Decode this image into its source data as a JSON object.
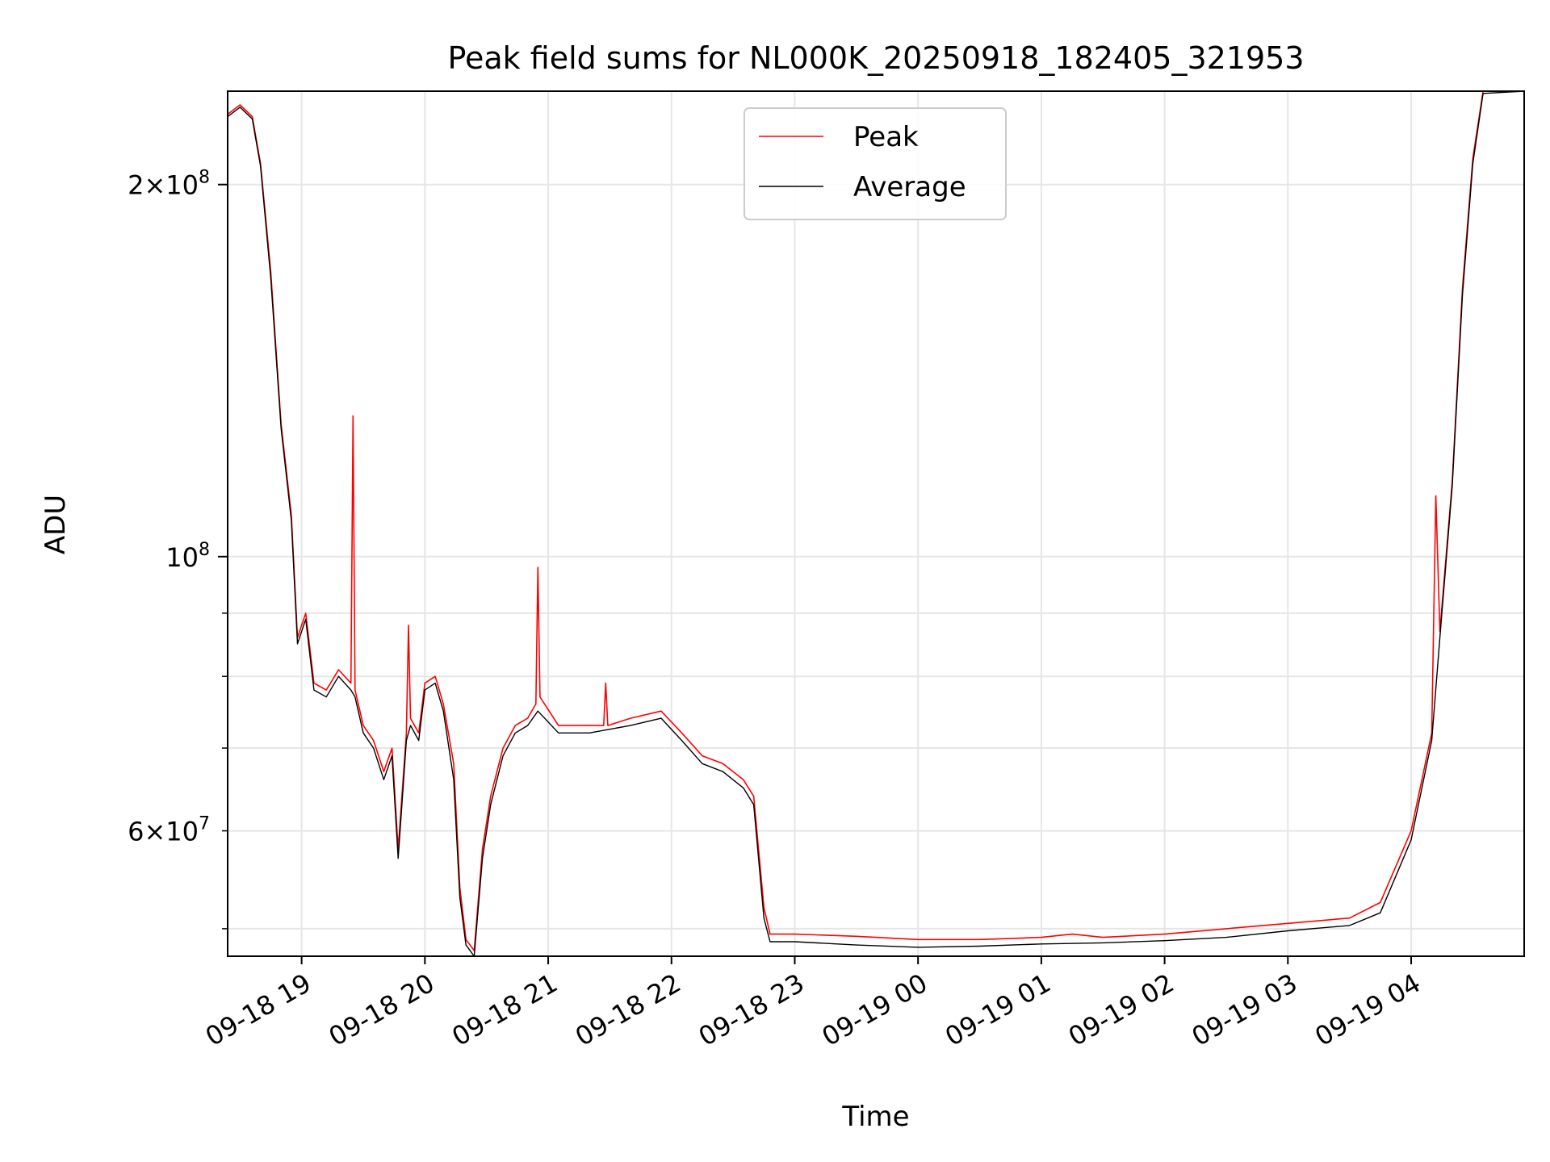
{
  "chart_data": {
    "type": "line",
    "title": "Peak field sums for NL000K_20250918_182405_321953",
    "xlabel": "Time",
    "ylabel": "ADU",
    "yscale": "log",
    "ylim": [
      47500000,
      238000000
    ],
    "xlim": [
      "2025-09-18T18:24",
      "2025-09-19T04:55"
    ],
    "grid": true,
    "legend_position": "top-center",
    "x_ticks": [
      "09-18 19",
      "09-18 20",
      "09-18 21",
      "09-18 22",
      "09-18 23",
      "09-19 00",
      "09-19 01",
      "09-19 02",
      "09-19 03",
      "09-19 04"
    ],
    "y_major_ticks": [
      {
        "value": 100000000,
        "base": "10",
        "exp": "8",
        "coef": ""
      },
      {
        "value": 200000000,
        "base": "10",
        "exp": "8",
        "coef": "2"
      }
    ],
    "y_minor_ticks": [
      {
        "value": 50000000,
        "base": "",
        "exp": "",
        "coef": ""
      },
      {
        "value": 60000000,
        "base": "10",
        "exp": "7",
        "coef": "6"
      },
      {
        "value": 70000000,
        "base": "",
        "exp": "",
        "coef": ""
      },
      {
        "value": 80000000,
        "base": "",
        "exp": "",
        "coef": ""
      },
      {
        "value": 90000000,
        "base": "",
        "exp": "",
        "coef": ""
      }
    ],
    "series": [
      {
        "name": "Peak",
        "color": "#ff0000",
        "points": [
          [
            "2025-09-18T18:24",
            228000000
          ],
          [
            "2025-09-18T18:30",
            232000000
          ],
          [
            "2025-09-18T18:36",
            227000000
          ],
          [
            "2025-09-18T18:40",
            208000000
          ],
          [
            "2025-09-18T18:45",
            170000000
          ],
          [
            "2025-09-18T18:50",
            128000000
          ],
          [
            "2025-09-18T18:55",
            108000000
          ],
          [
            "2025-09-18T18:58",
            86000000
          ],
          [
            "2025-09-18T19:02",
            90000000
          ],
          [
            "2025-09-18T19:06",
            79000000
          ],
          [
            "2025-09-18T19:12",
            78000000
          ],
          [
            "2025-09-18T19:18",
            81000000
          ],
          [
            "2025-09-18T19:24",
            79000000
          ],
          [
            "2025-09-18T19:25",
            130000000
          ],
          [
            "2025-09-18T19:26",
            78000000
          ],
          [
            "2025-09-18T19:30",
            73000000
          ],
          [
            "2025-09-18T19:35",
            71000000
          ],
          [
            "2025-09-18T19:40",
            67000000
          ],
          [
            "2025-09-18T19:44",
            70000000
          ],
          [
            "2025-09-18T19:47",
            58000000
          ],
          [
            "2025-09-18T19:51",
            72000000
          ],
          [
            "2025-09-18T19:52",
            88000000
          ],
          [
            "2025-09-18T19:53",
            74000000
          ],
          [
            "2025-09-18T19:57",
            72000000
          ],
          [
            "2025-09-18T20:00",
            79000000
          ],
          [
            "2025-09-18T20:05",
            80000000
          ],
          [
            "2025-09-18T20:09",
            76000000
          ],
          [
            "2025-09-18T20:14",
            68000000
          ],
          [
            "2025-09-18T20:17",
            54000000
          ],
          [
            "2025-09-18T20:20",
            49000000
          ],
          [
            "2025-09-18T20:24",
            48000000
          ],
          [
            "2025-09-18T20:28",
            58000000
          ],
          [
            "2025-09-18T20:32",
            64000000
          ],
          [
            "2025-09-18T20:38",
            70000000
          ],
          [
            "2025-09-18T20:44",
            73000000
          ],
          [
            "2025-09-18T20:50",
            74000000
          ],
          [
            "2025-09-18T20:54",
            76000000
          ],
          [
            "2025-09-18T20:55",
            98000000
          ],
          [
            "2025-09-18T20:56",
            77000000
          ],
          [
            "2025-09-18T21:05",
            73000000
          ],
          [
            "2025-09-18T21:20",
            73000000
          ],
          [
            "2025-09-18T21:27",
            73000000
          ],
          [
            "2025-09-18T21:28",
            79000000
          ],
          [
            "2025-09-18T21:29",
            73000000
          ],
          [
            "2025-09-18T21:40",
            74000000
          ],
          [
            "2025-09-18T21:55",
            75000000
          ],
          [
            "2025-09-18T22:05",
            72000000
          ],
          [
            "2025-09-18T22:15",
            69000000
          ],
          [
            "2025-09-18T22:25",
            68000000
          ],
          [
            "2025-09-18T22:35",
            66000000
          ],
          [
            "2025-09-18T22:40",
            64000000
          ],
          [
            "2025-09-18T22:45",
            52000000
          ],
          [
            "2025-09-18T22:48",
            49500000
          ],
          [
            "2025-09-18T23:00",
            49500000
          ],
          [
            "2025-09-18T23:30",
            49300000
          ],
          [
            "2025-09-19T00:00",
            49000000
          ],
          [
            "2025-09-19T00:30",
            49000000
          ],
          [
            "2025-09-19T01:00",
            49200000
          ],
          [
            "2025-09-19T01:15",
            49500000
          ],
          [
            "2025-09-19T01:30",
            49200000
          ],
          [
            "2025-09-19T02:00",
            49500000
          ],
          [
            "2025-09-19T02:30",
            50000000
          ],
          [
            "2025-09-19T03:00",
            50500000
          ],
          [
            "2025-09-19T03:30",
            51000000
          ],
          [
            "2025-09-19T03:45",
            52500000
          ],
          [
            "2025-09-19T04:00",
            60000000
          ],
          [
            "2025-09-19T04:10",
            72000000
          ],
          [
            "2025-09-19T04:12",
            112000000
          ],
          [
            "2025-09-19T04:14",
            87000000
          ],
          [
            "2025-09-19T04:20",
            115000000
          ],
          [
            "2025-09-19T04:25",
            165000000
          ],
          [
            "2025-09-19T04:30",
            210000000
          ],
          [
            "2025-09-19T04:35",
            238000000
          ],
          [
            "2025-09-19T04:55",
            238000000
          ]
        ]
      },
      {
        "name": "Average",
        "color": "#000000",
        "points": [
          [
            "2025-09-18T18:24",
            227000000
          ],
          [
            "2025-09-18T18:30",
            231000000
          ],
          [
            "2025-09-18T18:36",
            226000000
          ],
          [
            "2025-09-18T18:40",
            207000000
          ],
          [
            "2025-09-18T18:45",
            168000000
          ],
          [
            "2025-09-18T18:50",
            127000000
          ],
          [
            "2025-09-18T18:55",
            107000000
          ],
          [
            "2025-09-18T18:58",
            85000000
          ],
          [
            "2025-09-18T19:02",
            89000000
          ],
          [
            "2025-09-18T19:06",
            78000000
          ],
          [
            "2025-09-18T19:12",
            77000000
          ],
          [
            "2025-09-18T19:18",
            80000000
          ],
          [
            "2025-09-18T19:24",
            78000000
          ],
          [
            "2025-09-18T19:26",
            77000000
          ],
          [
            "2025-09-18T19:30",
            72000000
          ],
          [
            "2025-09-18T19:35",
            70000000
          ],
          [
            "2025-09-18T19:40",
            66000000
          ],
          [
            "2025-09-18T19:44",
            69000000
          ],
          [
            "2025-09-18T19:47",
            57000000
          ],
          [
            "2025-09-18T19:51",
            71000000
          ],
          [
            "2025-09-18T19:53",
            73000000
          ],
          [
            "2025-09-18T19:57",
            71000000
          ],
          [
            "2025-09-18T20:00",
            78000000
          ],
          [
            "2025-09-18T20:05",
            79000000
          ],
          [
            "2025-09-18T20:09",
            75000000
          ],
          [
            "2025-09-18T20:14",
            66000000
          ],
          [
            "2025-09-18T20:17",
            53000000
          ],
          [
            "2025-09-18T20:20",
            48500000
          ],
          [
            "2025-09-18T20:24",
            47500000
          ],
          [
            "2025-09-18T20:28",
            57000000
          ],
          [
            "2025-09-18T20:32",
            63000000
          ],
          [
            "2025-09-18T20:38",
            69000000
          ],
          [
            "2025-09-18T20:44",
            72000000
          ],
          [
            "2025-09-18T20:50",
            73000000
          ],
          [
            "2025-09-18T20:55",
            75000000
          ],
          [
            "2025-09-18T21:05",
            72000000
          ],
          [
            "2025-09-18T21:20",
            72000000
          ],
          [
            "2025-09-18T21:40",
            73000000
          ],
          [
            "2025-09-18T21:55",
            74000000
          ],
          [
            "2025-09-18T22:05",
            71000000
          ],
          [
            "2025-09-18T22:15",
            68000000
          ],
          [
            "2025-09-18T22:25",
            67000000
          ],
          [
            "2025-09-18T22:35",
            65000000
          ],
          [
            "2025-09-18T22:40",
            63000000
          ],
          [
            "2025-09-18T22:45",
            51000000
          ],
          [
            "2025-09-18T22:48",
            48800000
          ],
          [
            "2025-09-18T23:00",
            48800000
          ],
          [
            "2025-09-18T23:30",
            48500000
          ],
          [
            "2025-09-19T00:00",
            48300000
          ],
          [
            "2025-09-19T00:30",
            48400000
          ],
          [
            "2025-09-19T01:00",
            48600000
          ],
          [
            "2025-09-19T01:30",
            48700000
          ],
          [
            "2025-09-19T02:00",
            48900000
          ],
          [
            "2025-09-19T02:30",
            49200000
          ],
          [
            "2025-09-19T03:00",
            49800000
          ],
          [
            "2025-09-19T03:30",
            50300000
          ],
          [
            "2025-09-19T03:45",
            51500000
          ],
          [
            "2025-09-19T04:00",
            59000000
          ],
          [
            "2025-09-19T04:10",
            71000000
          ],
          [
            "2025-09-19T04:14",
            86000000
          ],
          [
            "2025-09-19T04:20",
            114000000
          ],
          [
            "2025-09-19T04:25",
            163000000
          ],
          [
            "2025-09-19T04:30",
            208000000
          ],
          [
            "2025-09-19T04:35",
            237000000
          ],
          [
            "2025-09-19T04:55",
            238000000
          ]
        ]
      }
    ]
  }
}
